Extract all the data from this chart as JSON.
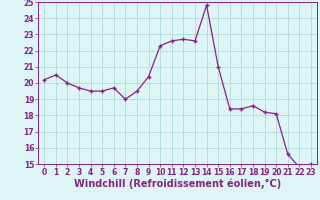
{
  "x": [
    0,
    1,
    2,
    3,
    4,
    5,
    6,
    7,
    8,
    9,
    10,
    11,
    12,
    13,
    14,
    15,
    16,
    17,
    18,
    19,
    20,
    21,
    22,
    23
  ],
  "y": [
    20.2,
    20.5,
    20.0,
    19.7,
    19.5,
    19.5,
    19.7,
    19.0,
    19.5,
    20.4,
    22.3,
    22.6,
    22.7,
    22.6,
    24.8,
    21.0,
    18.4,
    18.4,
    18.6,
    18.2,
    18.1,
    15.6,
    14.8,
    15.0
  ],
  "line_color": "#882288",
  "marker": "+",
  "marker_size": 3,
  "marker_linewidth": 1.0,
  "xlabel": "Windchill (Refroidissement éolien,°C)",
  "xlabel_fontsize": 7,
  "ylim": [
    15,
    25
  ],
  "xlim": [
    -0.5,
    23.5
  ],
  "yticks": [
    15,
    16,
    17,
    18,
    19,
    20,
    21,
    22,
    23,
    24,
    25
  ],
  "xticks": [
    0,
    1,
    2,
    3,
    4,
    5,
    6,
    7,
    8,
    9,
    10,
    11,
    12,
    13,
    14,
    15,
    16,
    17,
    18,
    19,
    20,
    21,
    22,
    23
  ],
  "grid_color": "#aadddd",
  "bg_color": "#ddf5f5",
  "tick_fontsize": 5.5,
  "line_width": 0.9,
  "spine_color": "#882288"
}
